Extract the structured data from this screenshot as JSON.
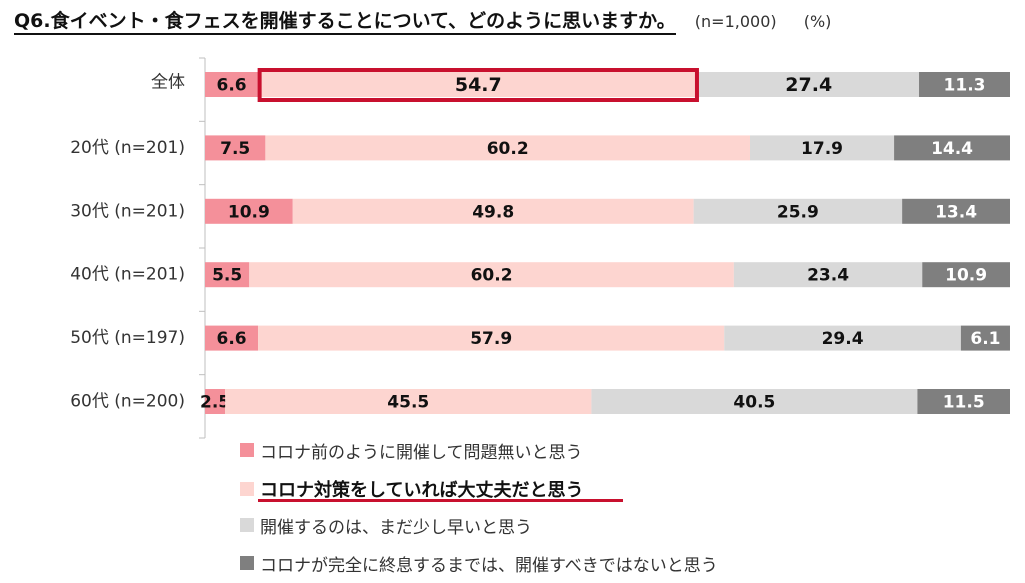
{
  "title": "Q6.食イベント・食フェスを開催することについて、どのように思いますか。",
  "sample_note": "(n=1,000)",
  "unit_note": "(%)",
  "colors": {
    "no_problem": "#f4909a",
    "ok_with_measures": "#fdd5d0",
    "too_early": "#d9d9d9",
    "should_not": "#7f7f7f",
    "highlight": "#c8102e"
  },
  "legend": [
    {
      "label": "コロナ前のように開催して問題無いと思う",
      "color": "#f4909a",
      "emphasis": false
    },
    {
      "label": "コロナ対策をしていれば大丈夫だと思う",
      "color": "#fdd5d0",
      "emphasis": true
    },
    {
      "label": "開催するのは、まだ少し早いと思う",
      "color": "#d9d9d9",
      "emphasis": false
    },
    {
      "label": "コロナが完全に終息するまでは、開催すべきではないと思う",
      "color": "#7f7f7f",
      "emphasis": false
    }
  ],
  "chart_data": {
    "type": "bar",
    "orientation": "horizontal",
    "stacked": true,
    "percent_scale": [
      0,
      100
    ],
    "categories": [
      "全体",
      "20代 (n=201)",
      "30代 (n=201)",
      "40代 (n=201)",
      "50代 (n=197)",
      "60代 (n=200)"
    ],
    "series": [
      {
        "name": "コロナ前のように開催して問題無いと思う",
        "values": [
          6.6,
          7.5,
          10.9,
          5.5,
          6.6,
          2.5
        ]
      },
      {
        "name": "コロナ対策をしていれば大丈夫だと思う",
        "values": [
          54.7,
          60.2,
          49.8,
          60.2,
          57.9,
          45.5
        ]
      },
      {
        "name": "開催するのは、まだ少し早いと思う",
        "values": [
          27.4,
          17.9,
          25.9,
          23.4,
          29.4,
          40.5
        ]
      },
      {
        "name": "コロナが完全に終息するまでは、開催すべきではないと思う",
        "values": [
          11.3,
          14.4,
          13.4,
          10.9,
          6.1,
          11.5
        ]
      }
    ],
    "highlight": {
      "category": "全体",
      "series": "コロナ対策をしていれば大丈夫だと思う"
    },
    "legend_position": "bottom",
    "grid": false
  }
}
